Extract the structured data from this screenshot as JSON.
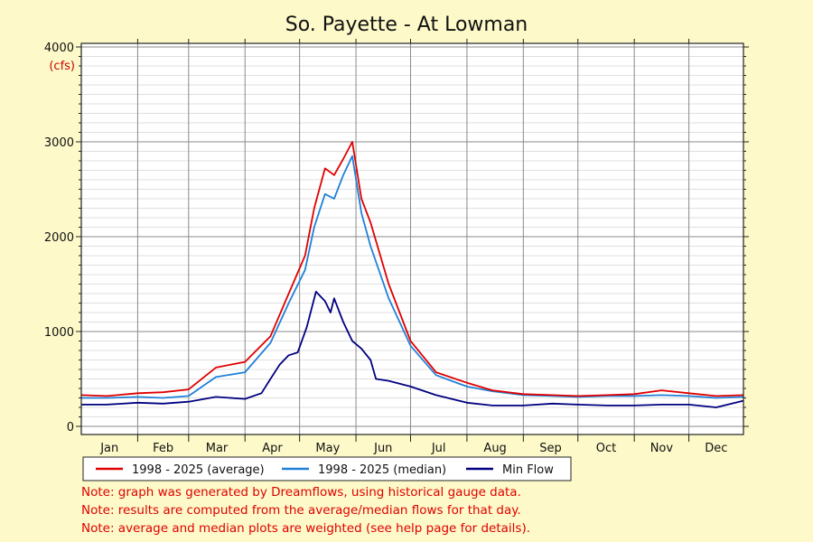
{
  "chart_data": {
    "type": "line",
    "title": "So. Payette - At Lowman",
    "y_unit": "(cfs)",
    "ylim": [
      0,
      4000
    ],
    "y_ticks": [
      0,
      1000,
      2000,
      3000,
      4000
    ],
    "x_range_days": [
      1,
      365
    ],
    "month_labels": [
      "Jan",
      "Feb",
      "Mar",
      "Apr",
      "May",
      "Jun",
      "Jul",
      "Aug",
      "Sep",
      "Oct",
      "Nov",
      "Dec"
    ],
    "grid": true,
    "legend_position": "bottom",
    "series": [
      {
        "name": "1998 - 2025 (average)",
        "color": "#e00000",
        "x": [
          1,
          15,
          32,
          46,
          60,
          75,
          91,
          105,
          115,
          124,
          129,
          135,
          140,
          145,
          150,
          155,
          160,
          170,
          182,
          196,
          213,
          227,
          244,
          260,
          274,
          290,
          305,
          320,
          335,
          350,
          365
        ],
        "y": [
          330,
          320,
          350,
          360,
          390,
          620,
          680,
          950,
          1400,
          1800,
          2300,
          2720,
          2650,
          2820,
          3000,
          2400,
          2150,
          1500,
          900,
          570,
          460,
          380,
          340,
          330,
          320,
          330,
          340,
          380,
          350,
          320,
          330
        ]
      },
      {
        "name": "1998 - 2025 (median)",
        "color": "#2080d8",
        "x": [
          1,
          15,
          32,
          46,
          60,
          75,
          91,
          105,
          115,
          124,
          129,
          135,
          140,
          145,
          150,
          155,
          160,
          170,
          182,
          196,
          213,
          227,
          244,
          260,
          274,
          290,
          305,
          320,
          335,
          350,
          365
        ],
        "y": [
          300,
          300,
          310,
          300,
          320,
          520,
          570,
          880,
          1300,
          1650,
          2100,
          2450,
          2400,
          2650,
          2850,
          2250,
          1900,
          1350,
          850,
          540,
          420,
          370,
          330,
          320,
          310,
          320,
          320,
          330,
          320,
          300,
          310
        ]
      },
      {
        "name": "Min Flow",
        "color": "#000080",
        "x": [
          1,
          15,
          32,
          46,
          60,
          75,
          91,
          100,
          105,
          110,
          115,
          120,
          125,
          130,
          135,
          138,
          140,
          145,
          150,
          155,
          160,
          163,
          170,
          182,
          196,
          213,
          227,
          244,
          260,
          274,
          290,
          305,
          320,
          335,
          350,
          365
        ],
        "y": [
          230,
          230,
          250,
          240,
          260,
          310,
          290,
          350,
          500,
          650,
          750,
          780,
          1050,
          1420,
          1320,
          1200,
          1350,
          1100,
          900,
          820,
          700,
          500,
          480,
          420,
          330,
          250,
          220,
          220,
          240,
          230,
          220,
          220,
          230,
          230,
          200,
          270
        ]
      }
    ]
  },
  "legend": [
    {
      "label": "1998 - 2025 (average)",
      "color": "#e00000"
    },
    {
      "label": "1998 - 2025 (median)",
      "color": "#2080d8"
    },
    {
      "label": "Min Flow",
      "color": "#000080"
    }
  ],
  "notes": [
    "Note: graph was generated by Dreamflows, using historical gauge data.",
    "Note: results are computed from the average/median flows for that day.",
    "Note: average and median plots are weighted (see help page for details)."
  ]
}
